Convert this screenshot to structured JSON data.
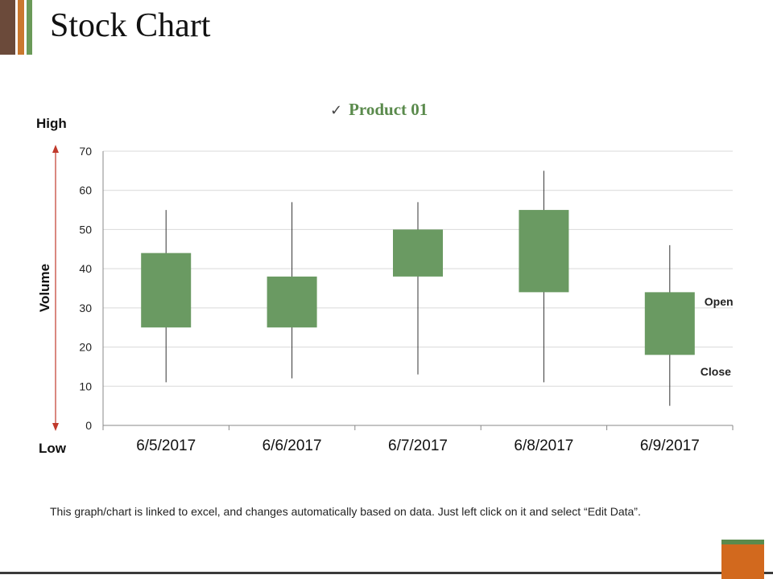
{
  "slide": {
    "title": "Stock Chart",
    "footer_note": "This graph/chart is linked to excel, and changes automatically based on data. Just left click on it and select “Edit Data”."
  },
  "side_labels": {
    "high": "High",
    "low": "Low",
    "volume": "Volume"
  },
  "annotations": {
    "open": "Open",
    "close": "Close"
  },
  "colors": {
    "candle": "#6a9a62",
    "wick": "#333333",
    "arrow": "#c0392b",
    "grid": "#d9d9d9",
    "axis": "#888888",
    "legend": "#5a8a4c",
    "bar_brown": "#6b4a3a",
    "bar_orange": "#c9782e",
    "bar_green": "#6a9a58"
  },
  "chart_data": {
    "type": "candlestick",
    "title": "",
    "legend": [
      "Product 01"
    ],
    "legend_position": "top",
    "ylabel": "Volume",
    "ylim": [
      0,
      70
    ],
    "yticks": [
      0,
      10,
      20,
      30,
      40,
      50,
      60,
      70
    ],
    "grid": true,
    "categories": [
      "6/5/2017",
      "6/6/2017",
      "6/7/2017",
      "6/8/2017",
      "6/9/2017"
    ],
    "series": [
      {
        "name": "Product 01",
        "open": [
          25,
          25,
          38,
          34,
          34
        ],
        "high": [
          55,
          57,
          57,
          65,
          46
        ],
        "low": [
          11,
          12,
          13,
          11,
          5
        ],
        "close": [
          44,
          38,
          50,
          55,
          18
        ]
      }
    ]
  }
}
